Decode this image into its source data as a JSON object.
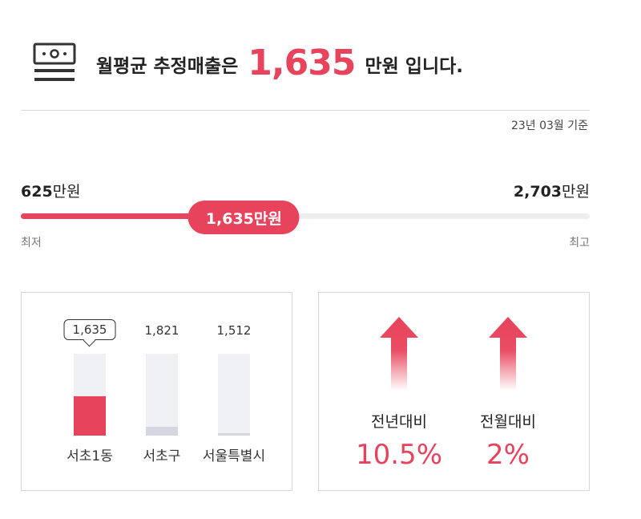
{
  "header": {
    "prefix": "월평균 추정매출은",
    "amount": "1,635",
    "suffix": "만원 입니다.",
    "icon": "money-icon",
    "basis": "23년 03월 기준"
  },
  "range": {
    "min_value": "625",
    "min_unit": "만원",
    "max_value": "2,703",
    "max_unit": "만원",
    "current": "1,635만원",
    "low_label": "최저",
    "high_label": "최고",
    "position": 0.392,
    "accent": "#e8435c",
    "track_color": "#eeeeee"
  },
  "comparison_bars": {
    "items": [
      {
        "label": "서초1동",
        "value": "1,635",
        "level": 0.48,
        "color": "#e8435c",
        "highlight": true
      },
      {
        "label": "서초구",
        "value": "1,821",
        "level": 0.11,
        "color": "#d4d6e2",
        "highlight": false
      },
      {
        "label": "서울특별시",
        "value": "1,512",
        "level": 0.03,
        "color": "#d4d6e2",
        "highlight": false
      }
    ]
  },
  "growth": {
    "yoy_label": "전년대비",
    "yoy_value": "10.5%",
    "mom_label": "전월대비",
    "mom_value": "2%",
    "icon": "arrow-up-icon"
  }
}
